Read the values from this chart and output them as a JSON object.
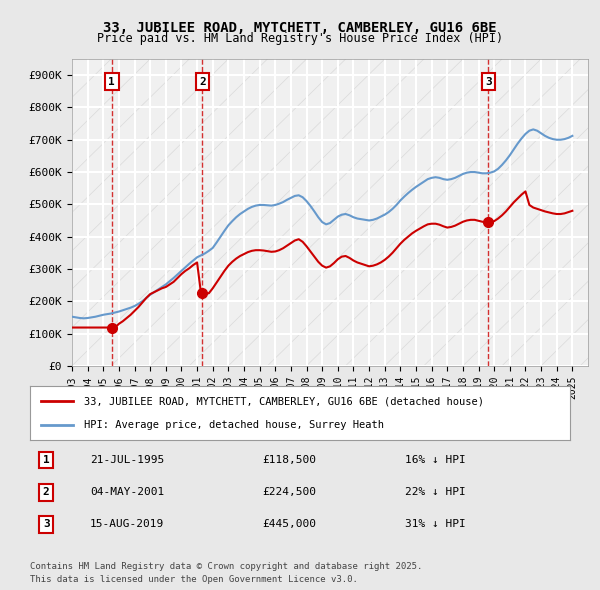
{
  "title": "33, JUBILEE ROAD, MYTCHETT, CAMBERLEY, GU16 6BE",
  "subtitle": "Price paid vs. HM Land Registry's House Price Index (HPI)",
  "sales": [
    {
      "date_year": 1995.55,
      "price": 118500,
      "label": "1",
      "date_str": "21-JUL-1995",
      "pct": "16%"
    },
    {
      "date_year": 2001.34,
      "price": 224500,
      "label": "2",
      "date_str": "04-MAY-2001",
      "pct": "22%"
    },
    {
      "date_year": 2019.62,
      "price": 445000,
      "label": "3",
      "date_str": "15-AUG-2019",
      "pct": "31%"
    }
  ],
  "legend_line1": "33, JUBILEE ROAD, MYTCHETT, CAMBERLEY, GU16 6BE (detached house)",
  "legend_line2": "HPI: Average price, detached house, Surrey Heath",
  "footer1": "Contains HM Land Registry data © Crown copyright and database right 2025.",
  "footer2": "This data is licensed under the Open Government Licence v3.0.",
  "red_line_color": "#cc0000",
  "blue_line_color": "#6699cc",
  "bg_color": "#e8e8e8",
  "plot_bg_color": "#f0f0f0",
  "grid_color": "#ffffff",
  "vline_color": "#cc0000",
  "marker_box_color": "#cc0000",
  "xlim": [
    1993,
    2026
  ],
  "ylim": [
    0,
    950000
  ],
  "yticks": [
    0,
    100000,
    200000,
    300000,
    400000,
    500000,
    600000,
    700000,
    800000,
    900000
  ],
  "ytick_labels": [
    "£0",
    "£100K",
    "£200K",
    "£300K",
    "£400K",
    "£500K",
    "£600K",
    "£700K",
    "£800K",
    "£900K"
  ],
  "hpi_x": [
    1993.0,
    1993.25,
    1993.5,
    1993.75,
    1994.0,
    1994.25,
    1994.5,
    1994.75,
    1995.0,
    1995.25,
    1995.5,
    1995.75,
    1996.0,
    1996.25,
    1996.5,
    1996.75,
    1997.0,
    1997.25,
    1997.5,
    1997.75,
    1998.0,
    1998.25,
    1998.5,
    1998.75,
    1999.0,
    1999.25,
    1999.5,
    1999.75,
    2000.0,
    2000.25,
    2000.5,
    2000.75,
    2001.0,
    2001.25,
    2001.5,
    2001.75,
    2002.0,
    2002.25,
    2002.5,
    2002.75,
    2003.0,
    2003.25,
    2003.5,
    2003.75,
    2004.0,
    2004.25,
    2004.5,
    2004.75,
    2005.0,
    2005.25,
    2005.5,
    2005.75,
    2006.0,
    2006.25,
    2006.5,
    2006.75,
    2007.0,
    2007.25,
    2007.5,
    2007.75,
    2008.0,
    2008.25,
    2008.5,
    2008.75,
    2009.0,
    2009.25,
    2009.5,
    2009.75,
    2010.0,
    2010.25,
    2010.5,
    2010.75,
    2011.0,
    2011.25,
    2011.5,
    2011.75,
    2012.0,
    2012.25,
    2012.5,
    2012.75,
    2013.0,
    2013.25,
    2013.5,
    2013.75,
    2014.0,
    2014.25,
    2014.5,
    2014.75,
    2015.0,
    2015.25,
    2015.5,
    2015.75,
    2016.0,
    2016.25,
    2016.5,
    2016.75,
    2017.0,
    2017.25,
    2017.5,
    2017.75,
    2018.0,
    2018.25,
    2018.5,
    2018.75,
    2019.0,
    2019.25,
    2019.5,
    2019.75,
    2020.0,
    2020.25,
    2020.5,
    2020.75,
    2021.0,
    2021.25,
    2021.5,
    2021.75,
    2022.0,
    2022.25,
    2022.5,
    2022.75,
    2023.0,
    2023.25,
    2023.5,
    2023.75,
    2024.0,
    2024.25,
    2024.5,
    2024.75,
    2025.0
  ],
  "hpi_y": [
    152000,
    150000,
    148000,
    147000,
    148000,
    150000,
    152000,
    155000,
    158000,
    160000,
    162000,
    165000,
    168000,
    172000,
    176000,
    180000,
    185000,
    192000,
    200000,
    210000,
    220000,
    228000,
    236000,
    244000,
    252000,
    262000,
    272000,
    283000,
    294000,
    305000,
    316000,
    326000,
    336000,
    342000,
    348000,
    356000,
    365000,
    382000,
    400000,
    418000,
    435000,
    448000,
    460000,
    470000,
    478000,
    486000,
    492000,
    496000,
    498000,
    498000,
    497000,
    496000,
    498000,
    502000,
    507000,
    514000,
    520000,
    526000,
    528000,
    522000,
    510000,
    495000,
    478000,
    460000,
    445000,
    438000,
    442000,
    452000,
    462000,
    468000,
    470000,
    466000,
    460000,
    456000,
    454000,
    452000,
    450000,
    452000,
    456000,
    462000,
    468000,
    476000,
    486000,
    498000,
    512000,
    524000,
    535000,
    545000,
    554000,
    562000,
    570000,
    578000,
    582000,
    584000,
    582000,
    578000,
    576000,
    578000,
    582000,
    588000,
    594000,
    598000,
    600000,
    600000,
    598000,
    596000,
    596000,
    598000,
    602000,
    610000,
    622000,
    636000,
    652000,
    670000,
    688000,
    704000,
    718000,
    728000,
    732000,
    728000,
    720000,
    712000,
    706000,
    702000,
    700000,
    700000,
    702000,
    706000,
    712000
  ],
  "red_x": [
    1993.0,
    1993.25,
    1993.5,
    1993.75,
    1994.0,
    1994.25,
    1994.5,
    1994.75,
    1995.0,
    1995.25,
    1995.5,
    1995.75,
    1996.0,
    1996.25,
    1996.5,
    1996.75,
    1997.0,
    1997.25,
    1997.5,
    1997.75,
    1998.0,
    1998.25,
    1998.5,
    1998.75,
    1999.0,
    1999.25,
    1999.5,
    1999.75,
    2000.0,
    2000.25,
    2000.5,
    2000.75,
    2001.0,
    2001.25,
    2001.5,
    2001.75,
    2002.0,
    2002.25,
    2002.5,
    2002.75,
    2003.0,
    2003.25,
    2003.5,
    2003.75,
    2004.0,
    2004.25,
    2004.5,
    2004.75,
    2005.0,
    2005.25,
    2005.5,
    2005.75,
    2006.0,
    2006.25,
    2006.5,
    2006.75,
    2007.0,
    2007.25,
    2007.5,
    2007.75,
    2008.0,
    2008.25,
    2008.5,
    2008.75,
    2009.0,
    2009.25,
    2009.5,
    2009.75,
    2010.0,
    2010.25,
    2010.5,
    2010.75,
    2011.0,
    2011.25,
    2011.5,
    2011.75,
    2012.0,
    2012.25,
    2012.5,
    2012.75,
    2013.0,
    2013.25,
    2013.5,
    2013.75,
    2014.0,
    2014.25,
    2014.5,
    2014.75,
    2015.0,
    2015.25,
    2015.5,
    2015.75,
    2016.0,
    2016.25,
    2016.5,
    2016.75,
    2017.0,
    2017.25,
    2017.5,
    2017.75,
    2018.0,
    2018.25,
    2018.5,
    2018.75,
    2019.0,
    2019.25,
    2019.5,
    2019.75,
    2020.0,
    2020.25,
    2020.5,
    2020.75,
    2021.0,
    2021.25,
    2021.5,
    2021.75,
    2022.0,
    2022.25,
    2022.5,
    2022.75,
    2023.0,
    2023.25,
    2023.5,
    2023.75,
    2024.0,
    2024.25,
    2024.5,
    2024.75,
    2025.0
  ],
  "red_y": [
    118500,
    118500,
    118500,
    118500,
    118500,
    118500,
    118500,
    118500,
    118500,
    118500,
    118500,
    118500,
    130000,
    138000,
    148000,
    158000,
    170000,
    182000,
    196000,
    210000,
    222000,
    228000,
    234000,
    240000,
    244000,
    252000,
    260000,
    272000,
    284000,
    294000,
    302000,
    312000,
    320000,
    224500,
    224500,
    224500,
    240000,
    258000,
    276000,
    294000,
    310000,
    322000,
    332000,
    340000,
    346000,
    352000,
    356000,
    358000,
    358000,
    357000,
    355000,
    353000,
    354000,
    358000,
    364000,
    372000,
    380000,
    388000,
    392000,
    384000,
    370000,
    354000,
    338000,
    322000,
    310000,
    304000,
    308000,
    318000,
    330000,
    338000,
    340000,
    334000,
    326000,
    320000,
    316000,
    312000,
    308000,
    310000,
    314000,
    320000,
    328000,
    338000,
    350000,
    364000,
    378000,
    390000,
    400000,
    410000,
    418000,
    425000,
    432000,
    438000,
    440000,
    440000,
    437000,
    432000,
    428000,
    430000,
    434000,
    440000,
    446000,
    450000,
    452000,
    452000,
    449000,
    446000,
    445000,
    445000,
    448000,
    456000,
    466000,
    478000,
    492000,
    506000,
    518000,
    530000,
    540000,
    498000,
    490000,
    486000,
    482000,
    478000,
    475000,
    472000,
    470000,
    470000,
    472000,
    476000,
    480000
  ]
}
